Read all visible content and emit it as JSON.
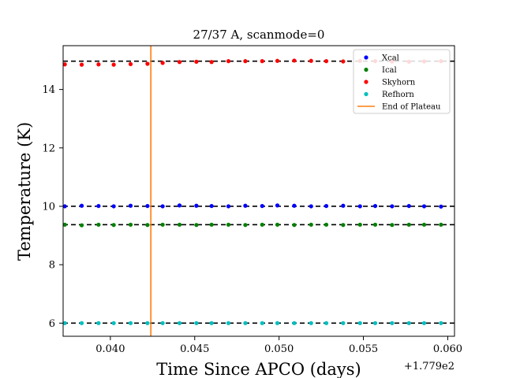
{
  "chart_data": {
    "type": "scatter",
    "title": "27/37 A, scanmode=0",
    "xlabel": "Time Since APCO (days)",
    "ylabel": "Temperature (K)",
    "x_offset_label": "+1.779e2",
    "xlim": [
      0.0372,
      0.0604
    ],
    "ylim": [
      5.55,
      15.5
    ],
    "xticks": [
      0.04,
      0.045,
      0.05,
      0.055,
      0.06
    ],
    "xtick_labels": [
      "0.040",
      "0.045",
      "0.050",
      "0.055",
      "0.060"
    ],
    "yticks": [
      6,
      8,
      10,
      12,
      14
    ],
    "ytick_labels": [
      "6",
      "8",
      "10",
      "12",
      "14"
    ],
    "grid": false,
    "legend_position": "top-right",
    "x": [
      0.0373,
      0.0383,
      0.0393,
      0.0402,
      0.0412,
      0.0422,
      0.0431,
      0.0441,
      0.0451,
      0.046,
      0.047,
      0.048,
      0.049,
      0.0499,
      0.0509,
      0.0519,
      0.0528,
      0.0538,
      0.0548,
      0.0557,
      0.0567,
      0.0577,
      0.0586,
      0.0596
    ],
    "series": [
      {
        "name": "Xcal",
        "color": "#0000ff",
        "marker": "dot",
        "y": [
          10.0,
          10.02,
          10.01,
          10.0,
          10.02,
          10.01,
          10.0,
          10.03,
          10.02,
          10.01,
          10.0,
          10.02,
          10.01,
          10.03,
          10.02,
          10.0,
          10.01,
          10.02,
          10.0,
          10.01,
          10.0,
          10.01,
          10.0,
          9.99
        ]
      },
      {
        "name": "Ical",
        "color": "#008000",
        "marker": "dot",
        "y": [
          9.37,
          9.35,
          9.37,
          9.36,
          9.37,
          9.36,
          9.37,
          9.37,
          9.36,
          9.37,
          9.37,
          9.36,
          9.37,
          9.37,
          9.36,
          9.37,
          9.37,
          9.36,
          9.37,
          9.37,
          9.36,
          9.37,
          9.37,
          9.37
        ]
      },
      {
        "name": "Skyhorn",
        "color": "#ff0000",
        "marker": "dot",
        "y": [
          14.86,
          14.85,
          14.86,
          14.85,
          14.87,
          14.88,
          14.91,
          14.94,
          14.95,
          14.94,
          14.97,
          14.97,
          14.97,
          14.98,
          14.99,
          14.98,
          14.97,
          14.96,
          14.98,
          14.97,
          14.96,
          14.95,
          14.96,
          14.97
        ]
      },
      {
        "name": "Refhorn",
        "color": "#00bfbf",
        "marker": "dot",
        "y": [
          6.0,
          6.0,
          6.0,
          6.0,
          6.0,
          6.0,
          6.0,
          6.0,
          6.0,
          6.0,
          6.0,
          6.0,
          6.0,
          6.0,
          6.0,
          6.0,
          6.0,
          6.0,
          6.0,
          6.0,
          6.0,
          6.0,
          6.0,
          6.0
        ]
      }
    ],
    "reference_lines": [
      {
        "orientation": "horizontal",
        "y": 14.97,
        "style": "dashed",
        "color": "#000000"
      },
      {
        "orientation": "horizontal",
        "y": 10.0,
        "style": "dashed",
        "color": "#000000"
      },
      {
        "orientation": "horizontal",
        "y": 9.37,
        "style": "dashed",
        "color": "#000000"
      },
      {
        "orientation": "horizontal",
        "y": 6.0,
        "style": "dashed",
        "color": "#000000"
      },
      {
        "orientation": "vertical",
        "x": 0.0424,
        "name": "End of Plateau",
        "color": "#ff7f0e",
        "style": "solid"
      }
    ]
  }
}
